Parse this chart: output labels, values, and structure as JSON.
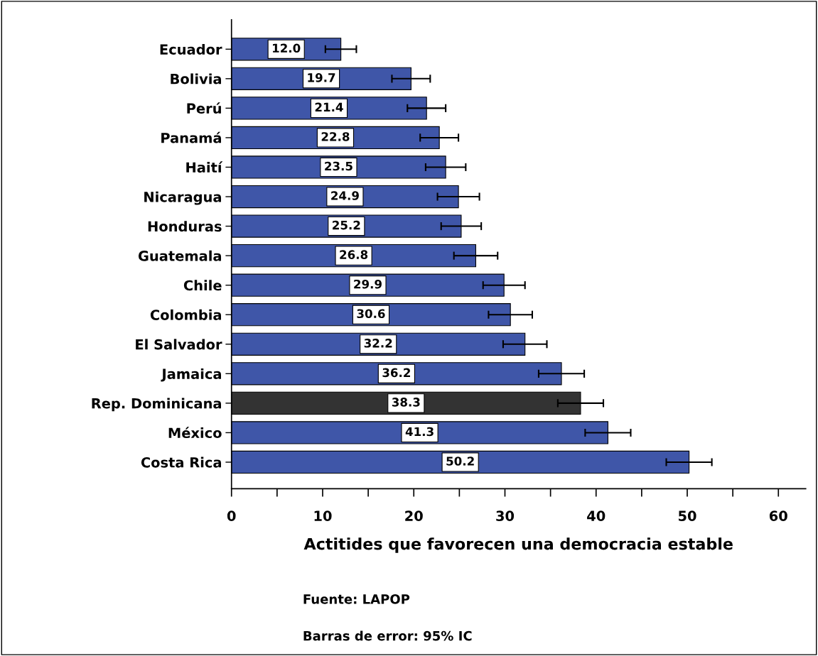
{
  "chart_data": {
    "type": "bar",
    "orientation": "horizontal",
    "categories": [
      "Ecuador",
      "Bolivia",
      "Perú",
      "Panamá",
      "Haití",
      "Nicaragua",
      "Honduras",
      "Guatemala",
      "Chile",
      "Colombia",
      "El Salvador",
      "Jamaica",
      "Rep. Dominicana",
      "México",
      "Costa Rica"
    ],
    "values": [
      12.0,
      19.7,
      21.4,
      22.8,
      23.5,
      24.9,
      25.2,
      26.8,
      29.9,
      30.6,
      32.2,
      36.2,
      38.3,
      41.3,
      50.2
    ],
    "errors": [
      1.7,
      2.1,
      2.1,
      2.1,
      2.2,
      2.3,
      2.2,
      2.4,
      2.3,
      2.4,
      2.4,
      2.5,
      2.5,
      2.5,
      2.5
    ],
    "colors": [
      "#3f56a8",
      "#3f56a8",
      "#3f56a8",
      "#3f56a8",
      "#3f56a8",
      "#3f56a8",
      "#3f56a8",
      "#3f56a8",
      "#3f56a8",
      "#3f56a8",
      "#3f56a8",
      "#3f56a8",
      "#333333",
      "#3f56a8",
      "#3f56a8"
    ],
    "value_labels": [
      "12.0",
      "19.7",
      "21.4",
      "22.8",
      "23.5",
      "24.9",
      "25.2",
      "26.8",
      "29.9",
      "30.6",
      "32.2",
      "36.2",
      "38.3",
      "41.3",
      "50.2"
    ],
    "xlim": [
      0,
      63
    ],
    "xticks": [
      0,
      {
        "value": 5,
        "label": null
      },
      10,
      {
        "value": 15,
        "label": null
      },
      20,
      {
        "value": 25,
        "label": null
      },
      30,
      {
        "value": 35,
        "label": null
      },
      40,
      {
        "value": 45,
        "label": null
      },
      50,
      {
        "value": 55,
        "label": null
      },
      60
    ],
    "xlabel": "Actitides que favorecen una democracia estable",
    "annotations": [
      "Fuente: LAPOP",
      "Barras de error: 95% IC"
    ],
    "grid": false,
    "legend": false
  }
}
